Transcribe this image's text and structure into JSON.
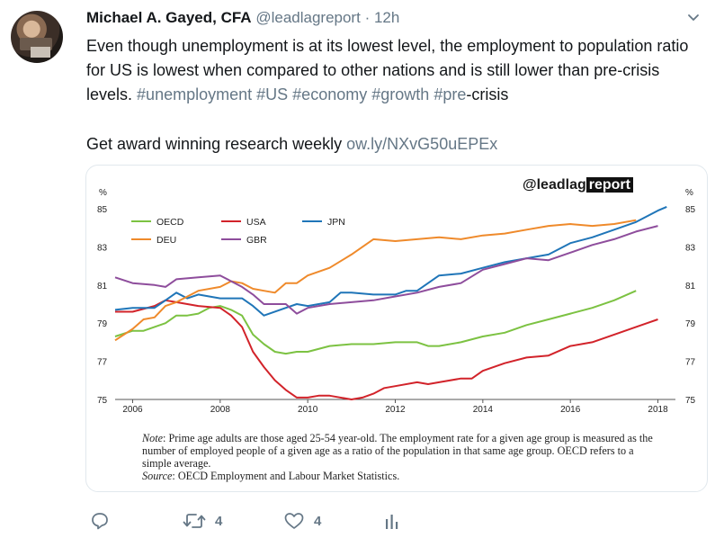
{
  "tweet": {
    "author_name": "Michael A. Gayed, CFA",
    "handle": "@leadlagreport",
    "separator": "·",
    "time": "12h",
    "text_main": "Even though unemployment is at its lowest level, the employment to population ratio for US is lowest when compared to other nations and is still lower than pre-crisis levels.",
    "hashtags": [
      "#unemployment",
      "#US",
      "#economy",
      "#growth",
      "#pre"
    ],
    "text_tail": "-crisis",
    "cta_text": "Get award winning research weekly",
    "link": "ow.ly/NXvG50uEPEx"
  },
  "card": {
    "brand_part1": "@leadlag",
    "brand_part2": "report",
    "note_label": "Note",
    "note_text": ": Prime age adults are those aged 25-54 year-old. The employment rate for a given age group is measured as the number of employed people of a given age as a ratio of the population in that same age group. OECD refers to a simple average.",
    "source_label": "Source",
    "source_text": ": OECD Employment and Labour Market Statistics."
  },
  "actions": {
    "reply_count": "",
    "retweet_count": "4",
    "like_count": "4"
  },
  "colors": {
    "OECD": "#7cc242",
    "USA": "#d2232a",
    "JPN": "#1f75b8",
    "DEU": "#ef8a2b",
    "GBR": "#8e4d9c",
    "text_secondary": "#657786"
  },
  "chart_data": {
    "type": "line",
    "y_unit_left": "%",
    "y_unit_right": "%",
    "ylim": [
      75,
      85
    ],
    "yticks": [
      75,
      77,
      79,
      81,
      83,
      85
    ],
    "xlim": [
      2005.6,
      2018.4
    ],
    "xticks": [
      2006,
      2008,
      2010,
      2012,
      2014,
      2016,
      2018
    ],
    "legend_position": "top-left",
    "series": [
      {
        "name": "OECD",
        "color": "#7cc242",
        "points": [
          [
            2005.6,
            78.3
          ],
          [
            2006.0,
            78.6
          ],
          [
            2006.25,
            78.6
          ],
          [
            2006.5,
            78.8
          ],
          [
            2006.75,
            79.0
          ],
          [
            2007.0,
            79.4
          ],
          [
            2007.25,
            79.4
          ],
          [
            2007.5,
            79.5
          ],
          [
            2007.75,
            79.8
          ],
          [
            2008.0,
            79.9
          ],
          [
            2008.25,
            79.7
          ],
          [
            2008.5,
            79.4
          ],
          [
            2008.75,
            78.4
          ],
          [
            2009.0,
            77.9
          ],
          [
            2009.25,
            77.5
          ],
          [
            2009.5,
            77.4
          ],
          [
            2009.75,
            77.5
          ],
          [
            2010.0,
            77.5
          ],
          [
            2010.5,
            77.8
          ],
          [
            2011.0,
            77.9
          ],
          [
            2011.5,
            77.9
          ],
          [
            2012.0,
            78.0
          ],
          [
            2012.5,
            78.0
          ],
          [
            2012.75,
            77.8
          ],
          [
            2013.0,
            77.8
          ],
          [
            2013.5,
            78.0
          ],
          [
            2014.0,
            78.3
          ],
          [
            2014.5,
            78.5
          ],
          [
            2015.0,
            78.9
          ],
          [
            2015.5,
            79.2
          ],
          [
            2016.0,
            79.5
          ],
          [
            2016.5,
            79.8
          ],
          [
            2017.0,
            80.2
          ],
          [
            2017.5,
            80.7
          ]
        ]
      },
      {
        "name": "USA",
        "color": "#d2232a",
        "points": [
          [
            2005.6,
            79.6
          ],
          [
            2006.0,
            79.6
          ],
          [
            2006.5,
            79.9
          ],
          [
            2006.75,
            80.2
          ],
          [
            2007.0,
            80.1
          ],
          [
            2007.5,
            79.9
          ],
          [
            2008.0,
            79.8
          ],
          [
            2008.25,
            79.4
          ],
          [
            2008.5,
            78.8
          ],
          [
            2008.75,
            77.5
          ],
          [
            2009.0,
            76.7
          ],
          [
            2009.25,
            76.0
          ],
          [
            2009.5,
            75.5
          ],
          [
            2009.75,
            75.1
          ],
          [
            2010.0,
            75.1
          ],
          [
            2010.25,
            75.2
          ],
          [
            2010.5,
            75.2
          ],
          [
            2011.0,
            75.0
          ],
          [
            2011.25,
            75.1
          ],
          [
            2011.5,
            75.3
          ],
          [
            2011.75,
            75.6
          ],
          [
            2012.0,
            75.7
          ],
          [
            2012.5,
            75.9
          ],
          [
            2012.75,
            75.8
          ],
          [
            2013.0,
            75.9
          ],
          [
            2013.5,
            76.1
          ],
          [
            2013.75,
            76.1
          ],
          [
            2014.0,
            76.5
          ],
          [
            2014.5,
            76.9
          ],
          [
            2015.0,
            77.2
          ],
          [
            2015.5,
            77.3
          ],
          [
            2016.0,
            77.8
          ],
          [
            2016.5,
            78.0
          ],
          [
            2017.0,
            78.4
          ],
          [
            2017.5,
            78.8
          ],
          [
            2017.75,
            79.0
          ],
          [
            2018.0,
            79.2
          ]
        ]
      },
      {
        "name": "JPN",
        "color": "#1f75b8",
        "points": [
          [
            2005.6,
            79.7
          ],
          [
            2006.0,
            79.8
          ],
          [
            2006.5,
            79.8
          ],
          [
            2006.75,
            80.2
          ],
          [
            2007.0,
            80.6
          ],
          [
            2007.25,
            80.3
          ],
          [
            2007.5,
            80.5
          ],
          [
            2007.75,
            80.4
          ],
          [
            2008.0,
            80.3
          ],
          [
            2008.5,
            80.3
          ],
          [
            2008.75,
            79.9
          ],
          [
            2009.0,
            79.4
          ],
          [
            2009.5,
            79.8
          ],
          [
            2009.75,
            80.0
          ],
          [
            2010.0,
            79.9
          ],
          [
            2010.5,
            80.1
          ],
          [
            2010.75,
            80.6
          ],
          [
            2011.0,
            80.6
          ],
          [
            2011.5,
            80.5
          ],
          [
            2012.0,
            80.5
          ],
          [
            2012.25,
            80.7
          ],
          [
            2012.5,
            80.7
          ],
          [
            2013.0,
            81.5
          ],
          [
            2013.5,
            81.6
          ],
          [
            2014.0,
            81.9
          ],
          [
            2014.5,
            82.2
          ],
          [
            2015.0,
            82.4
          ],
          [
            2015.5,
            82.6
          ],
          [
            2016.0,
            83.2
          ],
          [
            2016.5,
            83.5
          ],
          [
            2017.0,
            83.9
          ],
          [
            2017.5,
            84.3
          ],
          [
            2018.0,
            84.9
          ],
          [
            2018.2,
            85.1
          ]
        ]
      },
      {
        "name": "DEU",
        "color": "#ef8a2b",
        "points": [
          [
            2005.6,
            78.1
          ],
          [
            2006.0,
            78.7
          ],
          [
            2006.25,
            79.2
          ],
          [
            2006.5,
            79.3
          ],
          [
            2006.75,
            79.9
          ],
          [
            2007.0,
            80.1
          ],
          [
            2007.5,
            80.7
          ],
          [
            2008.0,
            80.9
          ],
          [
            2008.25,
            81.2
          ],
          [
            2008.5,
            81.1
          ],
          [
            2008.75,
            80.8
          ],
          [
            2009.0,
            80.7
          ],
          [
            2009.25,
            80.6
          ],
          [
            2009.5,
            81.1
          ],
          [
            2009.75,
            81.1
          ],
          [
            2010.0,
            81.5
          ],
          [
            2010.5,
            81.9
          ],
          [
            2011.0,
            82.6
          ],
          [
            2011.5,
            83.4
          ],
          [
            2012.0,
            83.3
          ],
          [
            2012.5,
            83.4
          ],
          [
            2013.0,
            83.5
          ],
          [
            2013.5,
            83.4
          ],
          [
            2014.0,
            83.6
          ],
          [
            2014.5,
            83.7
          ],
          [
            2015.0,
            83.9
          ],
          [
            2015.5,
            84.1
          ],
          [
            2016.0,
            84.2
          ],
          [
            2016.5,
            84.1
          ],
          [
            2017.0,
            84.2
          ],
          [
            2017.5,
            84.4
          ]
        ]
      },
      {
        "name": "GBR",
        "color": "#8e4d9c",
        "points": [
          [
            2005.6,
            81.4
          ],
          [
            2006.0,
            81.1
          ],
          [
            2006.5,
            81.0
          ],
          [
            2006.75,
            80.9
          ],
          [
            2007.0,
            81.3
          ],
          [
            2007.5,
            81.4
          ],
          [
            2008.0,
            81.5
          ],
          [
            2008.25,
            81.2
          ],
          [
            2008.5,
            80.9
          ],
          [
            2008.75,
            80.5
          ],
          [
            2009.0,
            80.0
          ],
          [
            2009.5,
            80.0
          ],
          [
            2009.75,
            79.5
          ],
          [
            2010.0,
            79.8
          ],
          [
            2010.5,
            80.0
          ],
          [
            2011.0,
            80.1
          ],
          [
            2011.5,
            80.2
          ],
          [
            2012.0,
            80.4
          ],
          [
            2012.5,
            80.6
          ],
          [
            2013.0,
            80.9
          ],
          [
            2013.5,
            81.1
          ],
          [
            2014.0,
            81.8
          ],
          [
            2014.5,
            82.1
          ],
          [
            2015.0,
            82.4
          ],
          [
            2015.5,
            82.3
          ],
          [
            2016.0,
            82.7
          ],
          [
            2016.5,
            83.1
          ],
          [
            2017.0,
            83.4
          ],
          [
            2017.5,
            83.8
          ],
          [
            2018.0,
            84.1
          ]
        ]
      }
    ]
  }
}
